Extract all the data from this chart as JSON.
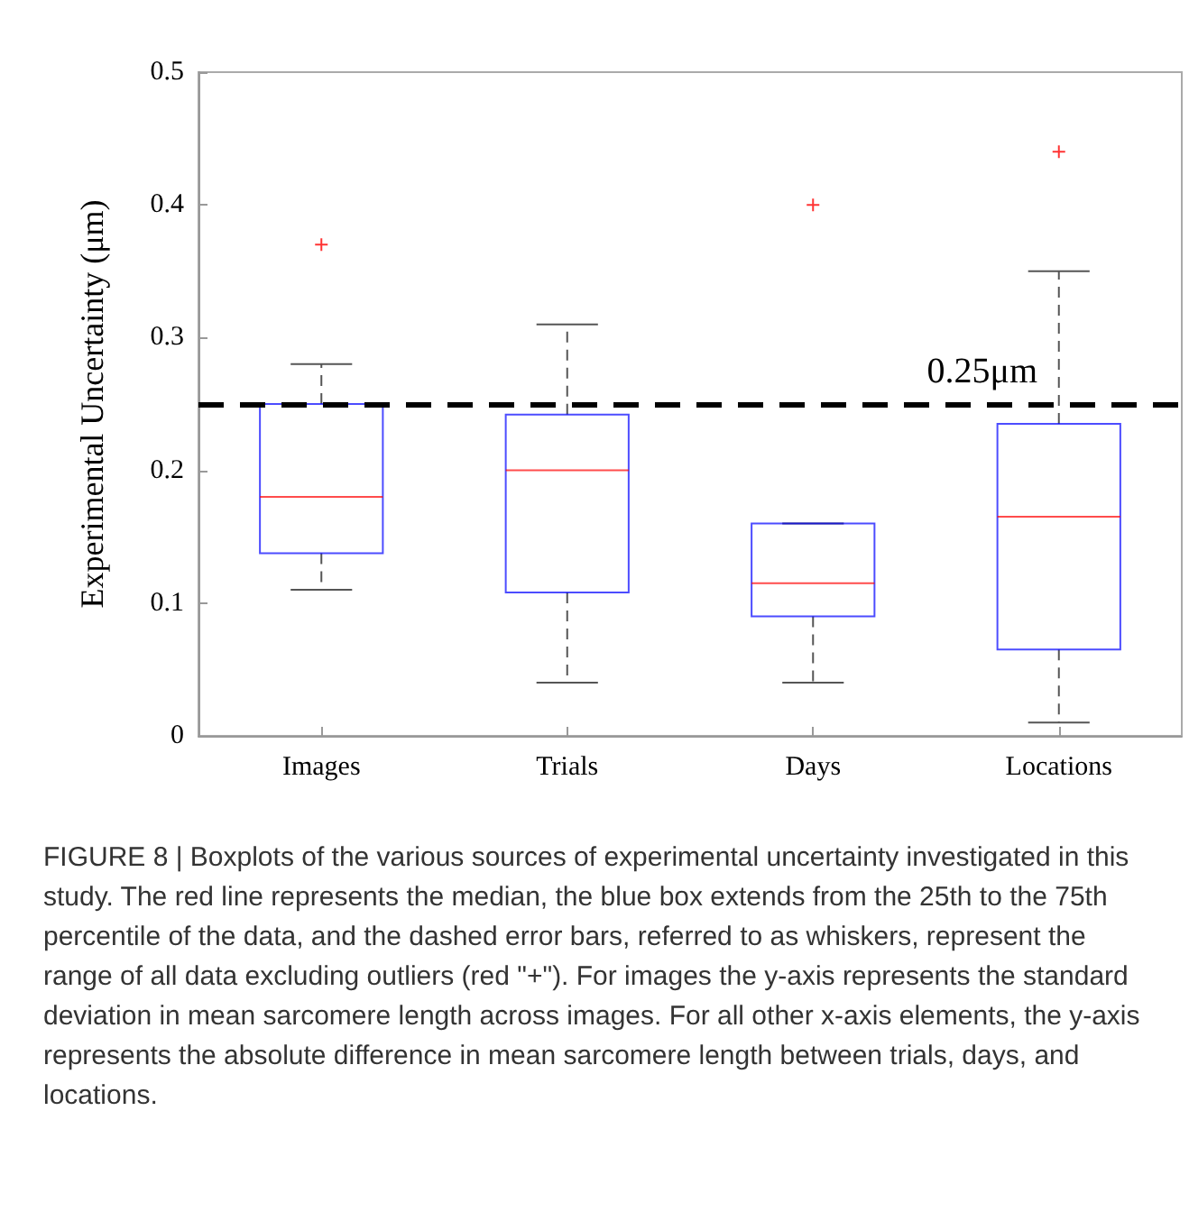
{
  "chart_data": {
    "type": "box",
    "ylabel": "Experimental Uncertainty (μm)",
    "categories": [
      "Images",
      "Trials",
      "Days",
      "Locations"
    ],
    "series": [
      {
        "color": "#0000ff",
        "boxes": [
          {
            "low": 0.11,
            "q1": 0.1375,
            "median": 0.18,
            "q3": 0.25,
            "high": 0.28,
            "outliers": [
              0.37
            ]
          },
          {
            "low": 0.04,
            "q1": 0.108,
            "median": 0.2,
            "q3": 0.242,
            "high": 0.31
          },
          {
            "low": 0.04,
            "q1": 0.09,
            "median": 0.115,
            "q3": 0.16,
            "high": 0.16,
            "outliers": [
              0.4
            ]
          },
          {
            "low": 0.01,
            "q1": 0.065,
            "median": 0.165,
            "q3": 0.235,
            "high": 0.35,
            "outliers": [
              0.44
            ]
          }
        ]
      }
    ],
    "ylim": [
      0,
      0.5
    ],
    "yticks": [
      0,
      0.1,
      0.2,
      0.3,
      0.4,
      0.5
    ],
    "grid": false,
    "ref_lines": [
      {
        "axis": "y",
        "value": 0.25,
        "label": "0.25μm",
        "color": "#000000",
        "line_style": "dashed"
      }
    ],
    "annotations": [
      "FIGURE 8 | Boxplots of the various sources of experimental uncertainty investigated in this study. The red line represents the median, the blue box extends from the 25th to the 75th percentile of the data, and the dashed error bars, referred to as whiskers, represent the range of all data excluding outliers (red \"+\"). For images the y-axis represents the standard deviation in mean sarcomere length across images. For all other x-axis elements, the y-axis represents the absolute difference in mean sarcomere length between trials, days, and locations."
    ]
  }
}
